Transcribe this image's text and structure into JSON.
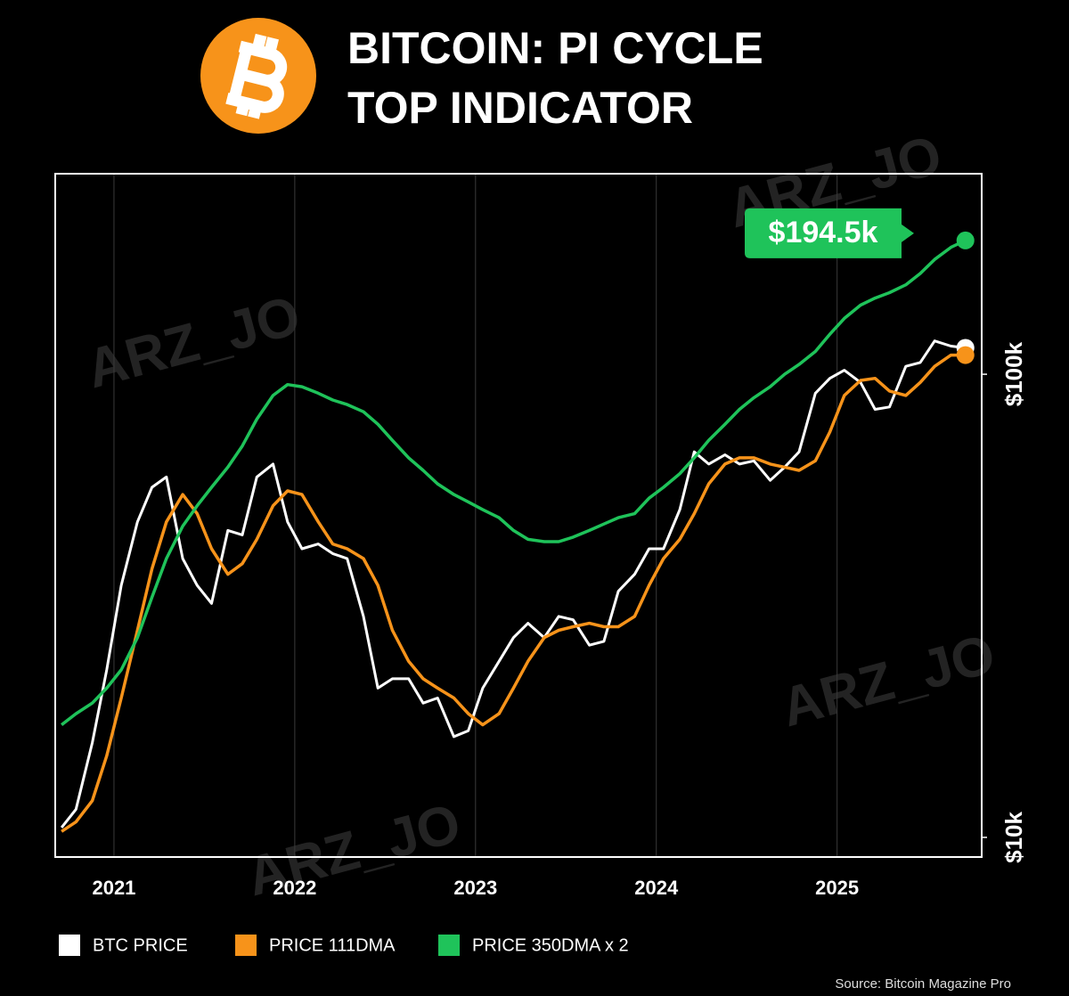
{
  "chart_data": {
    "type": "line",
    "title_lines": [
      "BITCOIN: PI CYCLE",
      "TOP INDICATOR"
    ],
    "log_scale_y": true,
    "grid_x": true,
    "xlim": [
      2020.675,
      2025.8
    ],
    "xticks": [
      2021,
      2022,
      2023,
      2024,
      2025
    ],
    "ylim": [
      9070,
      271000
    ],
    "yticks": [
      {
        "value": 10000,
        "label": "$10k"
      },
      {
        "value": 100000,
        "label": "$100k"
      }
    ],
    "x": [
      2020.71,
      2020.79,
      2020.88,
      2020.96,
      2021.04,
      2021.13,
      2021.21,
      2021.29,
      2021.38,
      2021.46,
      2021.54,
      2021.63,
      2021.71,
      2021.79,
      2021.88,
      2021.96,
      2022.04,
      2022.13,
      2022.21,
      2022.29,
      2022.38,
      2022.46,
      2022.54,
      2022.63,
      2022.71,
      2022.79,
      2022.88,
      2022.96,
      2023.04,
      2023.13,
      2023.21,
      2023.29,
      2023.38,
      2023.46,
      2023.54,
      2023.63,
      2023.71,
      2023.79,
      2023.88,
      2023.96,
      2024.04,
      2024.13,
      2024.21,
      2024.29,
      2024.38,
      2024.46,
      2024.54,
      2024.63,
      2024.71,
      2024.79,
      2024.88,
      2024.96,
      2025.04,
      2025.13,
      2025.21,
      2025.29,
      2025.38,
      2025.46,
      2025.54,
      2025.63,
      2025.71
    ],
    "series": [
      {
        "name": "BTC PRICE",
        "color": "#ffffff",
        "values": [
          10500,
          11500,
          16000,
          23000,
          35000,
          48000,
          57000,
          60000,
          40000,
          35000,
          32000,
          46000,
          45000,
          60000,
          64000,
          48000,
          42000,
          43000,
          41000,
          40000,
          30000,
          21000,
          22000,
          22000,
          19500,
          20000,
          16500,
          17000,
          21000,
          24000,
          27000,
          29000,
          27000,
          30000,
          29500,
          26000,
          26500,
          34000,
          37000,
          42000,
          42000,
          51000,
          68000,
          64000,
          67000,
          64000,
          65000,
          59000,
          63000,
          68000,
          91000,
          98000,
          102000,
          96000,
          84000,
          85000,
          104000,
          106000,
          118000,
          115000,
          114000
        ]
      },
      {
        "name": "PRICE 111DMA",
        "color": "#f7931a",
        "values": [
          10300,
          10800,
          12000,
          15000,
          20000,
          28000,
          38000,
          48000,
          55000,
          50000,
          42000,
          37000,
          39000,
          44000,
          52000,
          56000,
          55000,
          48000,
          43000,
          42000,
          40000,
          35000,
          28000,
          24000,
          22000,
          21000,
          20000,
          18500,
          17500,
          18500,
          21000,
          24000,
          27000,
          28000,
          28500,
          29000,
          28500,
          28500,
          30000,
          35000,
          40000,
          44000,
          50000,
          58000,
          64000,
          66000,
          66000,
          64000,
          63000,
          62000,
          65000,
          75000,
          90000,
          97000,
          98000,
          92000,
          90000,
          96000,
          104000,
          110000,
          110000
        ]
      },
      {
        "name": "PRICE 350DMA x 2",
        "color": "#1fc35a",
        "values": [
          17500,
          18500,
          19500,
          21000,
          23000,
          27000,
          33000,
          40000,
          47000,
          52000,
          57000,
          63000,
          70000,
          80000,
          90000,
          95000,
          94000,
          91000,
          88000,
          86000,
          83000,
          78000,
          72000,
          66000,
          62000,
          58000,
          55000,
          53000,
          51000,
          49000,
          46000,
          44000,
          43500,
          43500,
          44500,
          46000,
          47500,
          49000,
          50000,
          54000,
          57000,
          61000,
          66000,
          72000,
          78000,
          84000,
          89000,
          94000,
          100000,
          105000,
          112000,
          122000,
          132000,
          141000,
          146000,
          150000,
          156000,
          165000,
          177000,
          188000,
          194500
        ]
      }
    ],
    "annotation": "$194.5k",
    "watermark": "ARZ_JO",
    "source": "Source: Bitcoin Magazine Pro"
  }
}
